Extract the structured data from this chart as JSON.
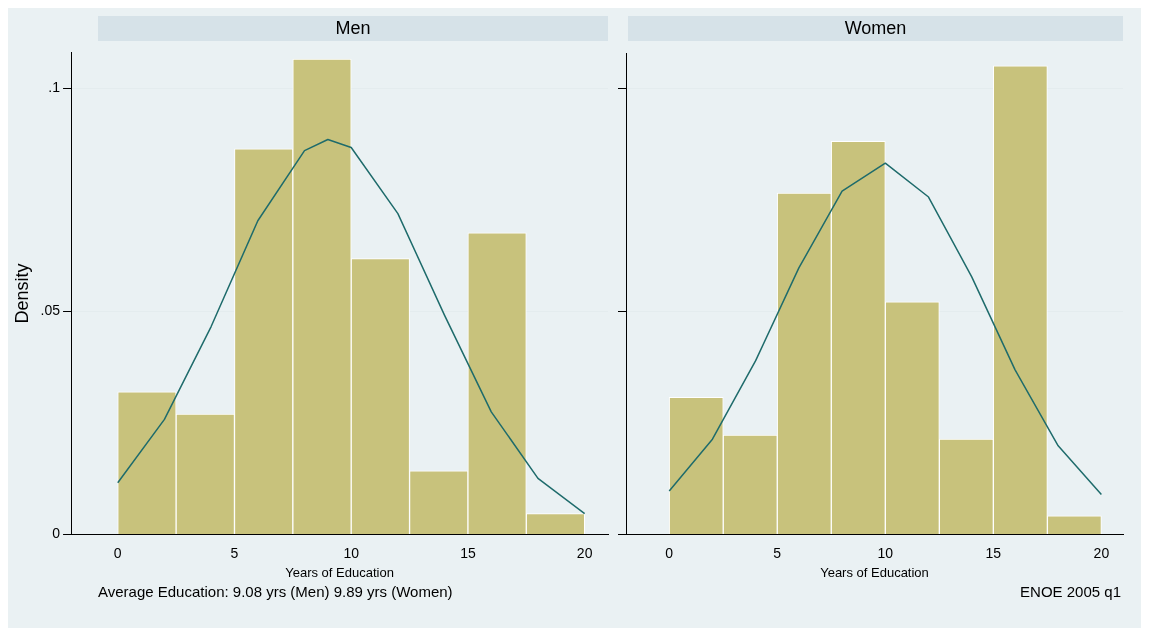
{
  "chart_data": [
    {
      "type": "histogram",
      "title": "Men",
      "xlabel": "Years of Education",
      "ylabel": "Density",
      "bins": [
        0,
        2.5,
        5,
        7.5,
        10,
        12.5,
        15,
        17.5,
        20
      ],
      "values": [
        0.032,
        0.027,
        0.0864,
        0.1065,
        0.0618,
        0.0143,
        0.0676,
        0.0047
      ],
      "color": "#c8c27c",
      "series": [
        {
          "type": "line",
          "color": "#1e6b6b",
          "x": [
            0,
            2,
            4,
            6,
            8,
            9,
            10,
            12,
            14,
            16,
            18,
            20
          ],
          "values": [
            0.0116,
            0.0258,
            0.0466,
            0.0703,
            0.086,
            0.0885,
            0.0867,
            0.0719,
            0.0491,
            0.0275,
            0.0126,
            0.0047
          ]
        }
      ],
      "xlim": [
        -2,
        21
      ],
      "xticks": [
        0,
        5,
        10,
        15,
        20
      ],
      "ylim": [
        0,
        0.108
      ],
      "yticks": [
        0,
        {
          "value": 0.05,
          "label": ".05"
        },
        {
          "value": 0.1,
          "label": ".1"
        }
      ],
      "grid": "y",
      "annotations": [
        "Average Education: 9.08 yrs (Men)  9.89 yrs (Women)"
      ]
    },
    {
      "type": "histogram",
      "title": "Women",
      "xlabel": "Years of Education",
      "bins": [
        0,
        2.5,
        5,
        7.5,
        10,
        12.5,
        15,
        17.5,
        20
      ],
      "values": [
        0.0308,
        0.0223,
        0.0766,
        0.0882,
        0.0522,
        0.0214,
        0.1051,
        0.0042
      ],
      "color": "#c8c27c",
      "series": [
        {
          "type": "line",
          "color": "#1e6b6b",
          "x": [
            0,
            2,
            4,
            6,
            8,
            10,
            12,
            14,
            16,
            18,
            20
          ],
          "values": [
            0.0098,
            0.0214,
            0.039,
            0.0598,
            0.077,
            0.0833,
            0.0757,
            0.0578,
            0.037,
            0.0199,
            0.009
          ]
        }
      ],
      "xlim": [
        -2,
        21
      ],
      "xticks": [
        0,
        5,
        10,
        15,
        20
      ],
      "ylim": [
        0,
        0.108
      ],
      "yticks": [
        {
          "value": 0,
          "label": null
        },
        {
          "value": 0.05,
          "label": null
        },
        {
          "value": 0.1,
          "label": null
        }
      ],
      "grid": "y",
      "tick_labels": "x",
      "annotations": [
        "ENOE 2005 q1"
      ]
    }
  ]
}
